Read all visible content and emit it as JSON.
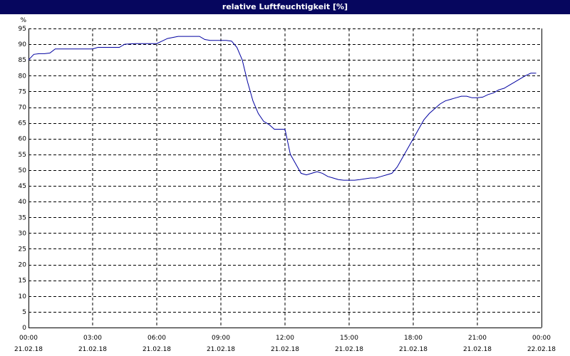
{
  "window": {
    "title": "relative Luftfeuchtigkeit [%]"
  },
  "colors": {
    "titlebar": "#06065e",
    "line": "#0000a0",
    "grid": "#000000"
  },
  "chart_data": {
    "type": "line",
    "title": "relative Luftfeuchtigkeit [%]",
    "ylabel": "%",
    "ylim": [
      0,
      95
    ],
    "yticks": [
      0,
      5,
      10,
      15,
      20,
      25,
      30,
      35,
      40,
      45,
      50,
      55,
      60,
      65,
      70,
      75,
      80,
      85,
      90,
      95
    ],
    "xlim": [
      "2018-02-21T00:00",
      "2018-02-22T00:00"
    ],
    "xticks": [
      {
        "time": "00:00",
        "date": "21.02.18"
      },
      {
        "time": "03:00",
        "date": "21.02.18"
      },
      {
        "time": "06:00",
        "date": "21.02.18"
      },
      {
        "time": "09:00",
        "date": "21.02.18"
      },
      {
        "time": "12:00",
        "date": "21.02.18"
      },
      {
        "time": "15:00",
        "date": "21.02.18"
      },
      {
        "time": "18:00",
        "date": "21.02.18"
      },
      {
        "time": "21:00",
        "date": "21.02.18"
      },
      {
        "time": "00:00",
        "date": "22.02.18"
      }
    ],
    "grid": true,
    "series": [
      {
        "x": [
          "00:00",
          "00:15",
          "00:30",
          "00:45",
          "01:00",
          "01:15",
          "01:30",
          "02:00",
          "02:30",
          "03:00",
          "03:15",
          "03:30",
          "04:00",
          "04:15",
          "04:30",
          "05:00",
          "05:30",
          "06:00",
          "06:15",
          "06:30",
          "07:00",
          "07:15",
          "07:30",
          "08:00",
          "08:15",
          "08:30",
          "09:00",
          "09:15",
          "09:30",
          "09:45",
          "10:00",
          "10:15",
          "10:30",
          "10:45",
          "11:00",
          "11:15",
          "11:30",
          "11:45",
          "12:00",
          "12:15",
          "12:30",
          "12:45",
          "13:00",
          "13:15",
          "13:30",
          "13:45",
          "14:00",
          "14:15",
          "14:30",
          "14:45",
          "15:00",
          "15:15",
          "15:30",
          "16:00",
          "16:15",
          "16:30",
          "16:45",
          "17:00",
          "17:15",
          "17:30",
          "17:45",
          "18:00",
          "18:15",
          "18:30",
          "18:45",
          "19:00",
          "19:15",
          "19:30",
          "19:45",
          "20:00",
          "20:15",
          "20:30",
          "20:45",
          "21:00",
          "21:15",
          "21:30",
          "21:45",
          "22:00",
          "22:15",
          "22:30",
          "22:45",
          "23:00",
          "23:15",
          "23:30",
          "23:45"
        ],
        "y": [
          85,
          86.8,
          87,
          87,
          87.2,
          88.5,
          88.5,
          88.5,
          88.5,
          88.5,
          89,
          89,
          89,
          89,
          90,
          90.2,
          90.2,
          90.2,
          91,
          91.8,
          92.5,
          92.5,
          92.5,
          92.5,
          91.5,
          91.2,
          91.2,
          91.2,
          91,
          89,
          85,
          78,
          72,
          68,
          65.5,
          64.5,
          63,
          63,
          63,
          55,
          52,
          49,
          48.5,
          49,
          49.5,
          49,
          48,
          47.5,
          47,
          46.8,
          46.8,
          46.8,
          47,
          47.5,
          47.5,
          48,
          48.5,
          49,
          51,
          54,
          57,
          60,
          63,
          66,
          68,
          69.5,
          71,
          72,
          72.5,
          73,
          73.5,
          73.5,
          73,
          73,
          73.2,
          74,
          74.5,
          75.5,
          76,
          77,
          78,
          79,
          80,
          80.8,
          80.8
        ]
      }
    ]
  }
}
